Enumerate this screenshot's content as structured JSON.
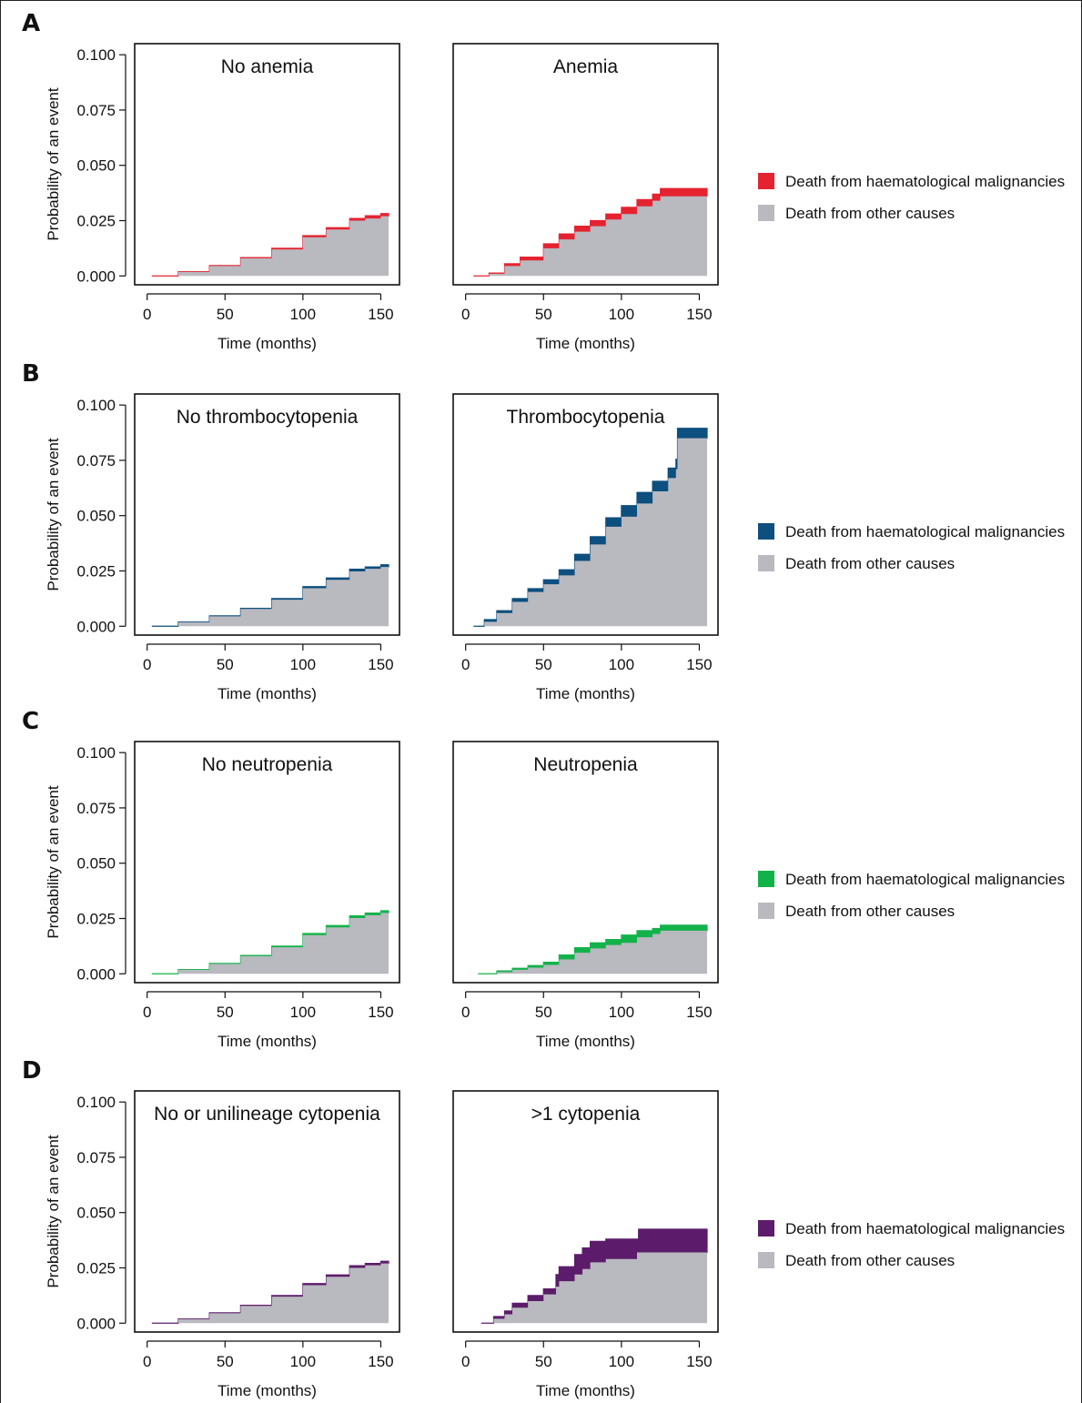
{
  "chart_data": [
    {
      "row": "A",
      "type": "area",
      "colors": {
        "haem": "#e52330",
        "other": "#b9b9c0"
      },
      "legend": [
        "Death from haematological malignancies",
        "Death from other causes"
      ],
      "ylabel": "Probability of an event",
      "xlabel": "Time (months)",
      "xlim": [
        -8,
        162
      ],
      "ylim": [
        -0.004,
        0.105
      ],
      "xticks": [
        "0",
        "50",
        "100",
        "150"
      ],
      "xtick_values": [
        0,
        50,
        100,
        150
      ],
      "yticks": [
        "0.000",
        "0.025",
        "0.050",
        "0.075",
        "0.100"
      ],
      "ytick_values": [
        0,
        0.025,
        0.05,
        0.075,
        0.1
      ],
      "panels": [
        {
          "title": "No anemia",
          "time": [
            3,
            20,
            40,
            60,
            80,
            100,
            115,
            130,
            140,
            150,
            155
          ],
          "other": [
            0,
            0.0018,
            0.0045,
            0.008,
            0.012,
            0.0175,
            0.021,
            0.025,
            0.026,
            0.027,
            0.027
          ],
          "total": [
            0,
            0.0019,
            0.0047,
            0.0083,
            0.0125,
            0.0182,
            0.0218,
            0.026,
            0.0272,
            0.0282,
            0.0282
          ]
        },
        {
          "title": "Anemia",
          "time": [
            5,
            15,
            25,
            35,
            50,
            60,
            70,
            80,
            90,
            100,
            110,
            120,
            125,
            155
          ],
          "other": [
            0,
            0.001,
            0.0045,
            0.007,
            0.0125,
            0.0165,
            0.02,
            0.0225,
            0.0255,
            0.028,
            0.0315,
            0.034,
            0.036,
            0.036
          ],
          "total": [
            0,
            0.0013,
            0.0055,
            0.0085,
            0.0145,
            0.019,
            0.0225,
            0.025,
            0.028,
            0.031,
            0.0345,
            0.037,
            0.0395,
            0.0395
          ]
        }
      ]
    },
    {
      "row": "B",
      "type": "area",
      "colors": {
        "haem": "#0d4f7e",
        "other": "#b9b9c0"
      },
      "legend": [
        "Death from haematological malignancies",
        "Death from other causes"
      ],
      "ylabel": "Probability of an event",
      "xlabel": "Time (months)",
      "xlim": [
        -8,
        162
      ],
      "ylim": [
        -0.004,
        0.105
      ],
      "xticks": [
        "0",
        "50",
        "100",
        "150"
      ],
      "xtick_values": [
        0,
        50,
        100,
        150
      ],
      "yticks": [
        "0.000",
        "0.025",
        "0.050",
        "0.075",
        "0.100"
      ],
      "ytick_values": [
        0,
        0.025,
        0.05,
        0.075,
        0.1
      ],
      "panels": [
        {
          "title": "No thrombocytopenia",
          "time": [
            3,
            20,
            40,
            60,
            80,
            100,
            115,
            130,
            140,
            150,
            155
          ],
          "other": [
            0,
            0.0018,
            0.0045,
            0.0078,
            0.012,
            0.0172,
            0.021,
            0.0248,
            0.026,
            0.0268,
            0.0268
          ],
          "total": [
            0,
            0.0019,
            0.0047,
            0.0081,
            0.0125,
            0.0179,
            0.0218,
            0.0258,
            0.0268,
            0.0278,
            0.0278
          ]
        },
        {
          "title": "Thrombocytopenia",
          "time": [
            5,
            12,
            20,
            30,
            40,
            50,
            60,
            70,
            80,
            90,
            100,
            110,
            120,
            130,
            135,
            136,
            155
          ],
          "other": [
            0,
            0.002,
            0.006,
            0.011,
            0.0155,
            0.019,
            0.023,
            0.0295,
            0.037,
            0.045,
            0.0495,
            0.0555,
            0.061,
            0.067,
            0.071,
            0.085,
            0.085
          ],
          "total": [
            0,
            0.003,
            0.007,
            0.0125,
            0.017,
            0.021,
            0.0255,
            0.0325,
            0.0405,
            0.049,
            0.0545,
            0.0605,
            0.0655,
            0.0715,
            0.0755,
            0.0895,
            0.0895
          ]
        }
      ]
    },
    {
      "row": "C",
      "type": "area",
      "colors": {
        "haem": "#12b24a",
        "other": "#b9b9c0"
      },
      "legend": [
        "Death from haematological malignancies",
        "Death from other causes"
      ],
      "ylabel": "Probability of an event",
      "xlabel": "Time (months)",
      "xlim": [
        -8,
        162
      ],
      "ylim": [
        -0.004,
        0.105
      ],
      "xticks": [
        "0",
        "50",
        "100",
        "150"
      ],
      "xtick_values": [
        0,
        50,
        100,
        150
      ],
      "yticks": [
        "0.000",
        "0.025",
        "0.050",
        "0.075",
        "0.100"
      ],
      "ytick_values": [
        0,
        0.025,
        0.05,
        0.075,
        0.1
      ],
      "panels": [
        {
          "title": "No neutropenia",
          "time": [
            3,
            20,
            40,
            60,
            80,
            100,
            115,
            130,
            140,
            150,
            155
          ],
          "other": [
            0,
            0.0018,
            0.0045,
            0.008,
            0.012,
            0.0175,
            0.021,
            0.0252,
            0.0265,
            0.0275,
            0.0275
          ],
          "total": [
            0,
            0.0019,
            0.0047,
            0.0083,
            0.0125,
            0.0182,
            0.0218,
            0.0262,
            0.0275,
            0.0285,
            0.0285
          ]
        },
        {
          "title": "Neutropenia",
          "time": [
            8,
            20,
            30,
            40,
            50,
            60,
            70,
            80,
            90,
            100,
            110,
            120,
            125,
            155
          ],
          "other": [
            0,
            0.0008,
            0.0018,
            0.0028,
            0.004,
            0.0065,
            0.0095,
            0.0115,
            0.013,
            0.014,
            0.0165,
            0.018,
            0.0195,
            0.0195
          ],
          "total": [
            0,
            0.0013,
            0.0025,
            0.0037,
            0.0052,
            0.0085,
            0.0118,
            0.014,
            0.0155,
            0.0175,
            0.0195,
            0.0205,
            0.022,
            0.022
          ]
        }
      ]
    },
    {
      "row": "D",
      "type": "area",
      "colors": {
        "haem": "#5d1c6b",
        "other": "#b9b9c0"
      },
      "legend": [
        "Death from haematological malignancies",
        "Death from other causes"
      ],
      "ylabel": "Probability of an event",
      "xlabel": "Time (months)",
      "xlim": [
        -8,
        162
      ],
      "ylim": [
        -0.004,
        0.105
      ],
      "xticks": [
        "0",
        "50",
        "100",
        "150"
      ],
      "xtick_values": [
        0,
        50,
        100,
        150
      ],
      "yticks": [
        "0.000",
        "0.025",
        "0.050",
        "0.075",
        "0.100"
      ],
      "ytick_values": [
        0,
        0.025,
        0.05,
        0.075,
        0.1
      ],
      "panels": [
        {
          "title": "No or unilineage cytopenia",
          "time": [
            3,
            20,
            40,
            60,
            80,
            100,
            115,
            130,
            140,
            150,
            155
          ],
          "other": [
            0,
            0.0018,
            0.0045,
            0.0078,
            0.012,
            0.0172,
            0.021,
            0.025,
            0.0262,
            0.027,
            0.027
          ],
          "total": [
            0,
            0.0019,
            0.0047,
            0.0081,
            0.0125,
            0.0179,
            0.0218,
            0.026,
            0.027,
            0.028,
            0.028
          ]
        },
        {
          "title": ">1 cytopenia",
          "time": [
            10,
            18,
            25,
            30,
            40,
            50,
            58,
            60,
            70,
            75,
            80,
            90,
            100,
            110,
            111,
            155
          ],
          "other": [
            0,
            0.002,
            0.004,
            0.007,
            0.01,
            0.013,
            0.0165,
            0.019,
            0.022,
            0.0245,
            0.0275,
            0.029,
            0.029,
            0.032,
            0.032,
            0.032
          ],
          "total": [
            0,
            0.003,
            0.0055,
            0.009,
            0.0125,
            0.0155,
            0.022,
            0.0255,
            0.031,
            0.034,
            0.037,
            0.038,
            0.038,
            0.038,
            0.0425,
            0.0425
          ]
        }
      ]
    }
  ]
}
